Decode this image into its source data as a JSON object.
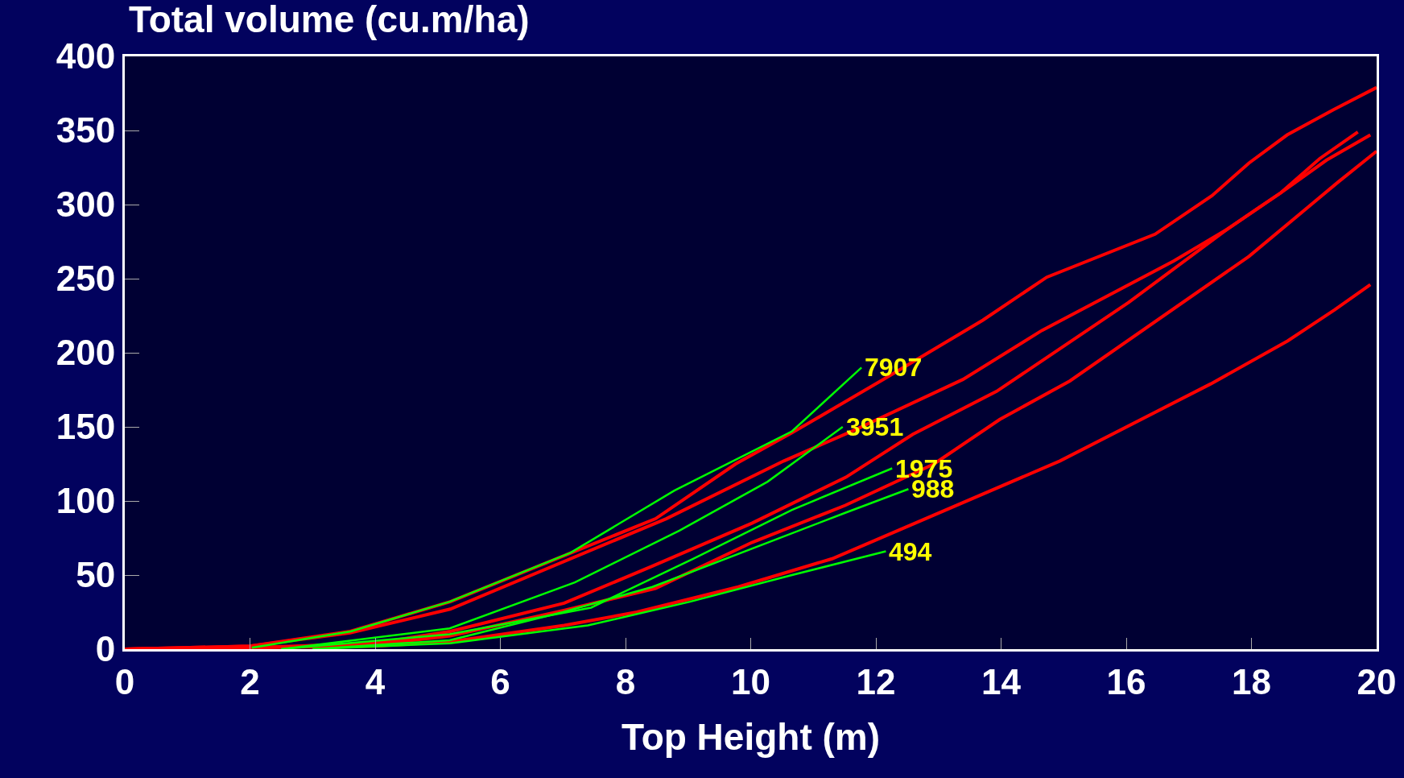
{
  "chart_data": {
    "type": "line",
    "title": "Total volume (cu.m/ha)",
    "xlabel": "Top Height (m)",
    "xlim": [
      0,
      20
    ],
    "xticks": [
      0,
      2,
      4,
      6,
      8,
      10,
      12,
      14,
      16,
      18,
      20
    ],
    "ylim": [
      0,
      400
    ],
    "yticks": [
      0,
      50,
      100,
      150,
      200,
      250,
      300,
      350,
      400
    ],
    "grid": false,
    "legend": false,
    "marker": "none",
    "line_style": "solid",
    "series": [
      {
        "color": "#ff0000",
        "x": [
          0,
          2,
          3.6,
          5.2,
          8.48,
          9.76,
          10.66,
          12.16,
          13.71,
          14.73,
          16.46,
          17.37,
          17.96,
          18.57,
          19.31,
          20
        ],
        "values": [
          0,
          2,
          12,
          32,
          88,
          125,
          146,
          183,
          222,
          251,
          280,
          306,
          328,
          347,
          364,
          379
        ]
      },
      {
        "color": "#ff0000",
        "x": [
          0,
          2,
          3.6,
          5.2,
          8.65,
          10.53,
          11.67,
          13.39,
          14.65,
          16.76,
          17.6,
          18.47,
          19.2,
          19.9
        ],
        "values": [
          0,
          2,
          11,
          27,
          88,
          127,
          148,
          182,
          215,
          262,
          283,
          308,
          330,
          347
        ]
      },
      {
        "color": "#ff0000",
        "x": [
          0,
          2,
          4,
          5.2,
          7.02,
          8.43,
          10.02,
          11.52,
          12.59,
          13.93,
          16.04,
          17.6,
          18.47,
          19.09,
          19.7
        ],
        "values": [
          0,
          1,
          4,
          12,
          31,
          56,
          85,
          116,
          145,
          174,
          234,
          283,
          308,
          331,
          349
        ]
      },
      {
        "color": "#ff0000",
        "x": [
          0,
          2,
          4,
          5.2,
          7,
          8.48,
          10.02,
          11.51,
          12.93,
          13.98,
          15.1,
          17.96,
          19.38,
          20
        ],
        "values": [
          0,
          1,
          3,
          9,
          26,
          41,
          72,
          97,
          125,
          155,
          181,
          265,
          315,
          336
        ]
      },
      {
        "color": "#ff0000",
        "x": [
          0,
          2,
          4,
          5.2,
          7.02,
          8.18,
          9.8,
          11.3,
          14.94,
          17.35,
          18.58,
          19.33,
          19.9
        ],
        "values": [
          0,
          1,
          2,
          5,
          16,
          25,
          42,
          61,
          127,
          179,
          208,
          229,
          246
        ]
      },
      {
        "name": "7907",
        "color": "#00ff00",
        "x": [
          2.03,
          3.61,
          5.19,
          7.12,
          8.78,
          10.66,
          11.77
        ],
        "values": [
          1,
          12,
          32,
          65,
          107,
          147,
          190
        ]
      },
      {
        "name": "3951",
        "color": "#00ff00",
        "x": [
          2.5,
          5.19,
          7.19,
          8.86,
          10.27,
          11.47
        ],
        "values": [
          0,
          14,
          45,
          80,
          113,
          150
        ]
      },
      {
        "name": "1975",
        "color": "#00ff00",
        "x": [
          2.5,
          5.19,
          7.45,
          9.08,
          10.66,
          12.26
        ],
        "values": [
          0,
          10,
          28,
          61,
          94,
          122
        ]
      },
      {
        "name": "988",
        "color": "#00ff00",
        "x": [
          3,
          5.19,
          7,
          8.43,
          11.51,
          12.52
        ],
        "values": [
          0,
          6,
          25,
          42,
          92,
          108
        ]
      },
      {
        "name": "494",
        "color": "#00ff00",
        "x": [
          3,
          5.2,
          7.4,
          9.03,
          10.66,
          12.16
        ],
        "values": [
          0,
          4,
          16,
          32,
          50,
          66
        ]
      }
    ]
  }
}
